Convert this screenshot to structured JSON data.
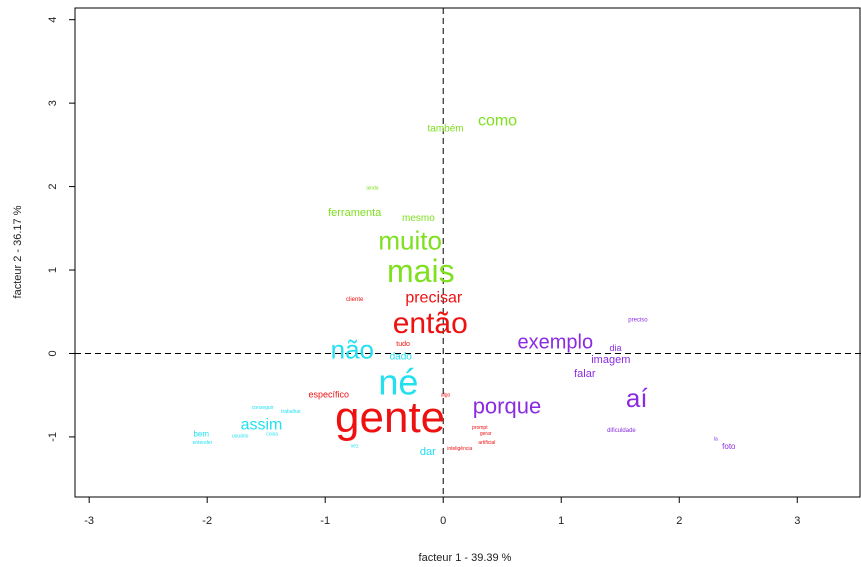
{
  "chart_data": {
    "type": "scatter",
    "xlabel": "facteur  1  - 39.39 %",
    "ylabel": "facteur  2  - 36.17 %",
    "xlim": [
      -3.12,
      3.54
    ],
    "ylim": [
      -1.72,
      4.14
    ],
    "xticks": [
      -3,
      -2,
      -1,
      0,
      1,
      2,
      3
    ],
    "yticks": [
      -1,
      0,
      1,
      2,
      3,
      4
    ],
    "series": [
      {
        "color": "#7fe020",
        "words": [
          "como",
          "também",
          "ferramenta",
          "mesmo",
          "muito",
          "mais",
          "ainda"
        ],
        "x": [
          0.46,
          0.02,
          -0.75,
          -0.21,
          -0.28,
          -0.19,
          -0.6
        ],
        "y": [
          2.78,
          2.69,
          1.68,
          1.62,
          1.33,
          0.96,
          1.98
        ],
        "size": [
          16,
          10,
          11,
          10,
          26,
          32,
          5
        ]
      },
      {
        "color": "#ee1111",
        "words": [
          "precisar",
          "então",
          "cliente",
          "tudo",
          "específico",
          "gente",
          "algo",
          "prompt",
          "gerar",
          "artificial",
          "inteligência"
        ],
        "x": [
          -0.08,
          -0.11,
          -0.75,
          -0.34,
          -0.97,
          -0.45,
          0.02,
          0.31,
          0.36,
          0.37,
          0.14
        ],
        "y": [
          0.66,
          0.34,
          0.65,
          0.11,
          -0.5,
          -0.8,
          -0.5,
          -0.89,
          -0.96,
          -1.07,
          -1.14
        ],
        "size": [
          16,
          30,
          6,
          7,
          9,
          44,
          5,
          5,
          5,
          5,
          5
        ]
      },
      {
        "color": "#22e0f0",
        "words": [
          "não",
          "dado",
          "né",
          "assim",
          "bem",
          "dar",
          "conseguir",
          "trabalhar",
          "coisa",
          "entender",
          "usuário",
          "vez"
        ],
        "x": [
          -0.77,
          -0.36,
          -0.38,
          -1.54,
          -2.05,
          -0.13,
          -1.53,
          -1.29,
          -1.45,
          -2.04,
          -1.72,
          -0.75
        ],
        "y": [
          0.02,
          -0.04,
          -0.38,
          -0.86,
          -0.97,
          -1.18,
          -0.65,
          -0.7,
          -0.97,
          -1.07,
          -0.99,
          -1.11
        ],
        "size": [
          26,
          10,
          36,
          16,
          8,
          11,
          5,
          5,
          5,
          5,
          5,
          5
        ]
      },
      {
        "color": "#8a2be2",
        "words": [
          "exemplo",
          "porque",
          "aí",
          "imagem",
          "dia",
          "falar",
          "preciso",
          "dificuldade",
          "foto",
          "la"
        ],
        "x": [
          0.95,
          0.54,
          1.64,
          1.42,
          1.46,
          1.2,
          1.65,
          1.51,
          2.42,
          2.31
        ],
        "y": [
          0.12,
          -0.65,
          -0.56,
          -0.08,
          0.06,
          -0.25,
          0.4,
          -0.92,
          -1.12,
          -1.03
        ],
        "size": [
          20,
          22,
          26,
          11,
          9,
          11,
          6,
          6,
          8,
          5
        ]
      }
    ]
  }
}
